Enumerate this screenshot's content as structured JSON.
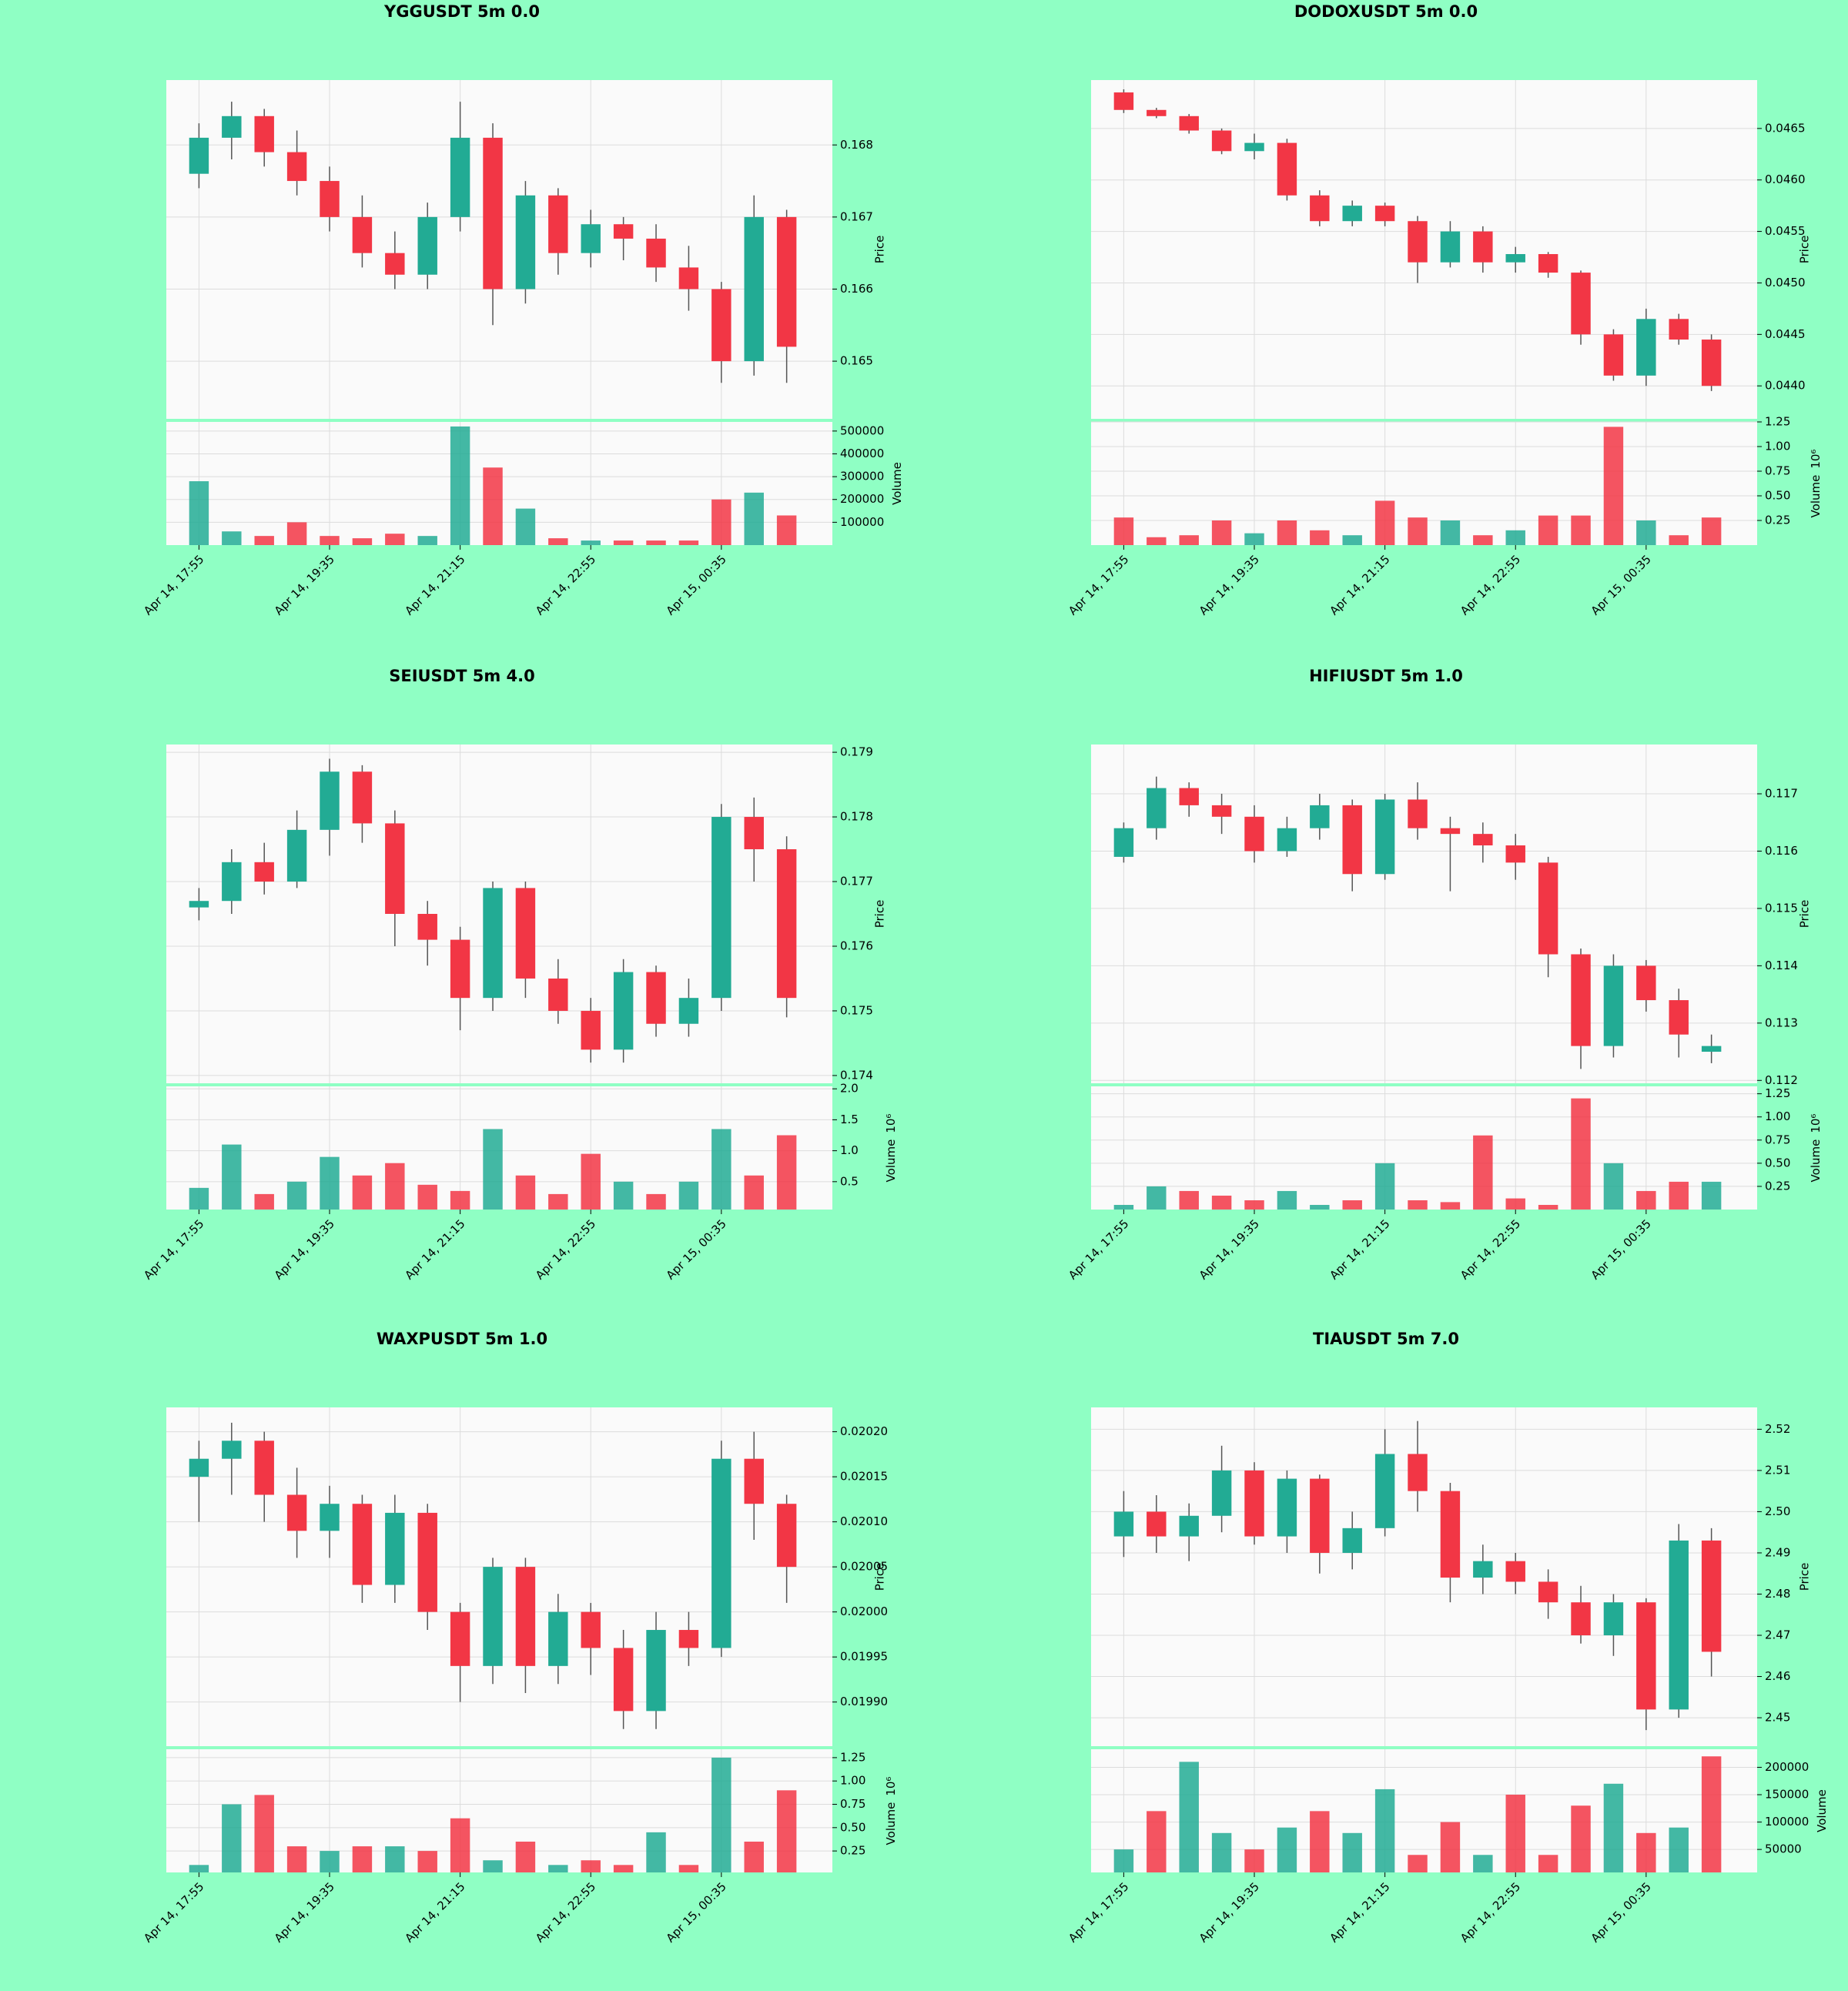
{
  "chart_data": [
    {
      "type": "candlestick",
      "title": "YGGUSDT 5m 0.0",
      "up_color": "#22ab94",
      "down_color": "#f23645",
      "x": [
        0,
        5,
        10,
        15,
        20,
        25,
        30,
        35,
        40,
        45,
        50,
        55,
        60,
        65,
        70,
        75,
        80,
        85,
        90
      ],
      "open": [
        0.1676,
        0.1681,
        0.1684,
        0.1679,
        0.1675,
        0.167,
        0.1665,
        0.1662,
        0.167,
        0.1681,
        0.166,
        0.1673,
        0.1665,
        0.1669,
        0.1667,
        0.1663,
        0.166,
        0.165,
        0.167
      ],
      "high": [
        0.1683,
        0.1686,
        0.1685,
        0.1682,
        0.1677,
        0.1673,
        0.1668,
        0.1672,
        0.1686,
        0.1683,
        0.1675,
        0.1674,
        0.1671,
        0.167,
        0.1669,
        0.1666,
        0.1661,
        0.1673,
        0.1671
      ],
      "low": [
        0.1674,
        0.1678,
        0.1677,
        0.1673,
        0.1668,
        0.1663,
        0.166,
        0.166,
        0.1668,
        0.1655,
        0.1658,
        0.1662,
        0.1663,
        0.1664,
        0.1661,
        0.1657,
        0.1647,
        0.1648,
        0.1647
      ],
      "close": [
        0.1681,
        0.1684,
        0.1679,
        0.1675,
        0.167,
        0.1665,
        0.1662,
        0.167,
        0.1681,
        0.166,
        0.1673,
        0.1665,
        0.1669,
        0.1667,
        0.1663,
        0.166,
        0.165,
        0.167,
        0.1652
      ],
      "volume": [
        280000,
        60000,
        40000,
        100000,
        40000,
        30000,
        50000,
        40000,
        520000,
        340000,
        160000,
        30000,
        20000,
        20000,
        20000,
        20000,
        200000,
        230000,
        130000
      ],
      "xlim": [
        -5,
        97
      ],
      "xticks": [
        {
          "value": 0,
          "label": "Apr 14, 17:55"
        },
        {
          "value": 20,
          "label": "Apr 14, 19:35"
        },
        {
          "value": 40,
          "label": "Apr 14, 21:15"
        },
        {
          "value": 60,
          "label": "Apr 14, 22:55"
        },
        {
          "value": 80,
          "label": "Apr 15, 00:35"
        }
      ],
      "ylim": [
        0.1642,
        0.1689
      ],
      "yticks": [
        0.165,
        0.166,
        0.167,
        0.168
      ],
      "ylabel": "Price",
      "volume_ylim": [
        0,
        540000
      ],
      "volume_yticks": [
        100000,
        200000,
        300000,
        400000,
        500000
      ],
      "volume_label": "Volume"
    },
    {
      "type": "candlestick",
      "title": "DODOXUSDT 5m 0.0",
      "up_color": "#22ab94",
      "down_color": "#f23645",
      "x": [
        0,
        5,
        10,
        15,
        20,
        25,
        30,
        35,
        40,
        45,
        50,
        55,
        60,
        65,
        70,
        75,
        80,
        85,
        90
      ],
      "open": [
        0.04685,
        0.04668,
        0.04662,
        0.04648,
        0.04628,
        0.04636,
        0.04585,
        0.0456,
        0.04575,
        0.0456,
        0.0452,
        0.0455,
        0.0452,
        0.04528,
        0.0451,
        0.0445,
        0.0441,
        0.04465,
        0.04445
      ],
      "high": [
        0.04688,
        0.0467,
        0.04664,
        0.0465,
        0.04645,
        0.0464,
        0.0459,
        0.0458,
        0.04578,
        0.04565,
        0.0456,
        0.04555,
        0.04535,
        0.0453,
        0.04512,
        0.04455,
        0.04475,
        0.0447,
        0.0445
      ],
      "low": [
        0.04665,
        0.0466,
        0.04645,
        0.04625,
        0.0462,
        0.0458,
        0.04555,
        0.04555,
        0.04555,
        0.045,
        0.04515,
        0.0451,
        0.0451,
        0.04505,
        0.0444,
        0.04405,
        0.044,
        0.0444,
        0.04395
      ],
      "close": [
        0.04668,
        0.04662,
        0.04648,
        0.04628,
        0.04636,
        0.04585,
        0.0456,
        0.04575,
        0.0456,
        0.0452,
        0.0455,
        0.0452,
        0.04528,
        0.0451,
        0.0445,
        0.0441,
        0.04465,
        0.04445,
        0.044
      ],
      "volume": [
        0.28,
        0.08,
        0.1,
        0.25,
        0.12,
        0.25,
        0.15,
        0.1,
        0.45,
        0.28,
        0.25,
        0.1,
        0.15,
        0.3,
        0.3,
        1.2,
        0.25,
        0.1,
        0.28
      ],
      "xlim": [
        -5,
        97
      ],
      "xticks": [
        {
          "value": 0,
          "label": "Apr 14, 17:55"
        },
        {
          "value": 20,
          "label": "Apr 14, 19:35"
        },
        {
          "value": 40,
          "label": "Apr 14, 21:15"
        },
        {
          "value": 60,
          "label": "Apr 14, 22:55"
        },
        {
          "value": 80,
          "label": "Apr 15, 00:35"
        }
      ],
      "ylim": [
        0.04368,
        0.04697
      ],
      "yticks": [
        {
          "value": 0.044,
          "label": "0.0440"
        },
        0.0445,
        {
          "value": 0.045,
          "label": "0.0450"
        },
        0.0455,
        {
          "value": 0.046,
          "label": "0.0460"
        },
        0.0465
      ],
      "ylabel": "Price",
      "volume_ylim": [
        0,
        1.25
      ],
      "volume_yticks": [
        0.25,
        {
          "value": 0.5,
          "label": "0.50"
        },
        0.75,
        {
          "value": 1,
          "label": "1.00"
        },
        1.25
      ],
      "volume_label": "Volume",
      "volume_scale": "10⁶"
    },
    {
      "type": "candlestick",
      "title": "SEIUSDT 5m 4.0",
      "up_color": "#22ab94",
      "down_color": "#f23645",
      "x": [
        0,
        5,
        10,
        15,
        20,
        25,
        30,
        35,
        40,
        45,
        50,
        55,
        60,
        65,
        70,
        75,
        80,
        85,
        90
      ],
      "open": [
        0.1766,
        0.1767,
        0.1773,
        0.177,
        0.1778,
        0.1787,
        0.1779,
        0.1765,
        0.1761,
        0.1752,
        0.1769,
        0.1755,
        0.175,
        0.1744,
        0.1756,
        0.1748,
        0.1752,
        0.178,
        0.1775
      ],
      "high": [
        0.1769,
        0.1775,
        0.1776,
        0.1781,
        0.1789,
        0.1788,
        0.1781,
        0.1767,
        0.1763,
        0.177,
        0.177,
        0.1758,
        0.1752,
        0.1758,
        0.1757,
        0.1755,
        0.1782,
        0.1783,
        0.1777
      ],
      "low": [
        0.1764,
        0.1765,
        0.1768,
        0.1769,
        0.1774,
        0.1776,
        0.176,
        0.1757,
        0.1747,
        0.175,
        0.1752,
        0.1748,
        0.1742,
        0.1742,
        0.1746,
        0.1746,
        0.175,
        0.177,
        0.1749
      ],
      "close": [
        0.1767,
        0.1773,
        0.177,
        0.1778,
        0.1787,
        0.1779,
        0.1765,
        0.1761,
        0.1752,
        0.1769,
        0.1755,
        0.175,
        0.1744,
        0.1756,
        0.1748,
        0.1752,
        0.178,
        0.1775,
        0.1752
      ],
      "volume": [
        0.4,
        1.1,
        0.3,
        0.5,
        0.9,
        0.6,
        0.8,
        0.45,
        0.35,
        1.35,
        0.6,
        0.3,
        0.95,
        0.5,
        0.3,
        0.5,
        1.35,
        0.6,
        1.25
      ],
      "xlim": [
        -5,
        97
      ],
      "xticks": [
        {
          "value": 0,
          "label": "Apr 14, 17:55"
        },
        {
          "value": 20,
          "label": "Apr 14, 19:35"
        },
        {
          "value": 40,
          "label": "Apr 14, 21:15"
        },
        {
          "value": 60,
          "label": "Apr 14, 22:55"
        },
        {
          "value": 80,
          "label": "Apr 15, 00:35"
        }
      ],
      "ylim": [
        0.17388,
        0.17912
      ],
      "yticks": [
        0.174,
        0.175,
        0.176,
        0.177,
        0.178,
        0.179
      ],
      "ylabel": "Price",
      "volume_ylim": [
        0.05,
        2.04
      ],
      "volume_yticks": [
        0.5,
        {
          "value": 1,
          "label": "1.0"
        },
        1.5,
        {
          "value": 2,
          "label": "2.0"
        }
      ],
      "volume_label": "Volume",
      "volume_scale": "10⁶"
    },
    {
      "type": "candlestick",
      "title": "HIFIUSDT 5m 1.0",
      "up_color": "#22ab94",
      "down_color": "#f23645",
      "x": [
        0,
        5,
        10,
        15,
        20,
        25,
        30,
        35,
        40,
        45,
        50,
        55,
        60,
        65,
        70,
        75,
        80,
        85,
        90
      ],
      "open": [
        0.1159,
        0.1164,
        0.1171,
        0.1168,
        0.1166,
        0.116,
        0.1164,
        0.1168,
        0.1156,
        0.1169,
        0.1164,
        0.1163,
        0.1161,
        0.1158,
        0.1142,
        0.1126,
        0.114,
        0.1134,
        0.1125
      ],
      "high": [
        0.1165,
        0.1173,
        0.1172,
        0.117,
        0.1168,
        0.1166,
        0.117,
        0.1169,
        0.117,
        0.1172,
        0.1166,
        0.1165,
        0.1163,
        0.1159,
        0.1143,
        0.1142,
        0.1141,
        0.1136,
        0.1128
      ],
      "low": [
        0.1158,
        0.1162,
        0.1166,
        0.1163,
        0.1158,
        0.1159,
        0.1162,
        0.1153,
        0.1155,
        0.1162,
        0.1153,
        0.1158,
        0.1155,
        0.1138,
        0.1122,
        0.1124,
        0.1132,
        0.1124,
        0.1123
      ],
      "close": [
        0.1164,
        0.1171,
        0.1168,
        0.1166,
        0.116,
        0.1164,
        0.1168,
        0.1156,
        0.1169,
        0.1164,
        0.1163,
        0.1161,
        0.1158,
        0.1142,
        0.1126,
        0.114,
        0.1134,
        0.1128,
        0.1126
      ],
      "volume": [
        0.05,
        0.25,
        0.2,
        0.15,
        0.1,
        0.2,
        0.05,
        0.1,
        0.5,
        0.1,
        0.08,
        0.8,
        0.12,
        0.05,
        1.2,
        0.5,
        0.2,
        0.3,
        0.3
      ],
      "xlim": [
        -5,
        97
      ],
      "xticks": [
        {
          "value": 0,
          "label": "Apr 14, 17:55"
        },
        {
          "value": 20,
          "label": "Apr 14, 19:35"
        },
        {
          "value": 40,
          "label": "Apr 14, 21:15"
        },
        {
          "value": 60,
          "label": "Apr 14, 22:55"
        },
        {
          "value": 80,
          "label": "Apr 15, 00:35"
        }
      ],
      "ylim": [
        0.11195,
        0.11786
      ],
      "yticks": [
        0.112,
        0.113,
        0.114,
        0.115,
        0.116,
        0.117
      ],
      "ylabel": "Price",
      "volume_ylim": [
        0,
        1.33
      ],
      "volume_yticks": [
        0.25,
        {
          "value": 0.5,
          "label": "0.50"
        },
        0.75,
        {
          "value": 1,
          "label": "1.00"
        },
        1.25
      ],
      "volume_label": "Volume",
      "volume_scale": "10⁶"
    },
    {
      "type": "candlestick",
      "title": "WAXPUSDT 5m 1.0",
      "up_color": "#22ab94",
      "down_color": "#f23645",
      "x": [
        0,
        5,
        10,
        15,
        20,
        25,
        30,
        35,
        40,
        45,
        50,
        55,
        60,
        65,
        70,
        75,
        80,
        85,
        90
      ],
      "open": [
        0.02015,
        0.02017,
        0.02019,
        0.02013,
        0.02009,
        0.02012,
        0.02003,
        0.02011,
        0.02,
        0.01994,
        0.02005,
        0.01994,
        0.02,
        0.01996,
        0.01989,
        0.01998,
        0.01996,
        0.02017,
        0.02012
      ],
      "high": [
        0.02019,
        0.02021,
        0.0202,
        0.02016,
        0.02014,
        0.02013,
        0.02013,
        0.02012,
        0.02001,
        0.02006,
        0.02006,
        0.02002,
        0.02001,
        0.01998,
        0.02,
        0.02,
        0.02019,
        0.0202,
        0.02013
      ],
      "low": [
        0.0201,
        0.02013,
        0.0201,
        0.02006,
        0.02006,
        0.02001,
        0.02001,
        0.01998,
        0.0199,
        0.01992,
        0.01991,
        0.01992,
        0.01993,
        0.01987,
        0.01987,
        0.01994,
        0.01995,
        0.02008,
        0.02001
      ],
      "close": [
        0.02017,
        0.02019,
        0.02013,
        0.02009,
        0.02012,
        0.02003,
        0.02011,
        0.02,
        0.01994,
        0.02005,
        0.01994,
        0.02,
        0.01996,
        0.01989,
        0.01998,
        0.01996,
        0.02017,
        0.02012,
        0.02005
      ],
      "volume": [
        0.1,
        0.75,
        0.85,
        0.3,
        0.25,
        0.3,
        0.3,
        0.25,
        0.6,
        0.15,
        0.35,
        0.1,
        0.15,
        0.1,
        0.45,
        0.1,
        1.25,
        0.35,
        0.9
      ],
      "xlim": [
        -5,
        97
      ],
      "xticks": [
        {
          "value": 0,
          "label": "Apr 14, 17:55"
        },
        {
          "value": 20,
          "label": "Apr 14, 19:35"
        },
        {
          "value": 40,
          "label": "Apr 14, 21:15"
        },
        {
          "value": 60,
          "label": "Apr 14, 22:55"
        },
        {
          "value": 80,
          "label": "Apr 15, 00:35"
        }
      ],
      "ylim": [
        0.019851,
        0.020227
      ],
      "yticks": [
        {
          "value": 0.0199,
          "label": "0.01990"
        },
        0.01995,
        {
          "value": 0.02,
          "label": "0.02000"
        },
        0.02005,
        {
          "value": 0.0201,
          "label": "0.02010"
        },
        0.02015,
        {
          "value": 0.0202,
          "label": "0.02020"
        }
      ],
      "ylabel": "Price",
      "volume_ylim": [
        0.02,
        1.34
      ],
      "volume_yticks": [
        0.25,
        {
          "value": 0.5,
          "label": "0.50"
        },
        0.75,
        {
          "value": 1,
          "label": "1.00"
        },
        1.25
      ],
      "volume_label": "Volume",
      "volume_scale": "10⁶"
    },
    {
      "type": "candlestick",
      "title": "TIAUSDT 5m 7.0",
      "up_color": "#22ab94",
      "down_color": "#f23645",
      "x": [
        0,
        5,
        10,
        15,
        20,
        25,
        30,
        35,
        40,
        45,
        50,
        55,
        60,
        65,
        70,
        75,
        80,
        85,
        90
      ],
      "open": [
        2.494,
        2.5,
        2.494,
        2.499,
        2.51,
        2.494,
        2.508,
        2.49,
        2.496,
        2.514,
        2.505,
        2.484,
        2.488,
        2.483,
        2.478,
        2.47,
        2.478,
        2.452,
        2.493
      ],
      "high": [
        2.505,
        2.504,
        2.502,
        2.516,
        2.512,
        2.51,
        2.509,
        2.5,
        2.52,
        2.522,
        2.507,
        2.492,
        2.49,
        2.486,
        2.482,
        2.48,
        2.479,
        2.497,
        2.496
      ],
      "low": [
        2.489,
        2.49,
        2.488,
        2.495,
        2.492,
        2.49,
        2.485,
        2.486,
        2.494,
        2.5,
        2.478,
        2.48,
        2.48,
        2.474,
        2.468,
        2.465,
        2.447,
        2.45,
        2.46
      ],
      "close": [
        2.5,
        2.494,
        2.499,
        2.51,
        2.494,
        2.508,
        2.49,
        2.496,
        2.514,
        2.505,
        2.484,
        2.488,
        2.483,
        2.478,
        2.47,
        2.478,
        2.452,
        2.493,
        2.466
      ],
      "volume": [
        50000,
        120000,
        210000,
        80000,
        50000,
        90000,
        120000,
        80000,
        160000,
        40000,
        100000,
        40000,
        150000,
        40000,
        130000,
        170000,
        80000,
        90000,
        220000
      ],
      "xlim": [
        -5,
        97
      ],
      "xticks": [
        {
          "value": 0,
          "label": "Apr 14, 17:55"
        },
        {
          "value": 20,
          "label": "Apr 14, 19:35"
        },
        {
          "value": 40,
          "label": "Apr 14, 21:15"
        },
        {
          "value": 60,
          "label": "Apr 14, 22:55"
        },
        {
          "value": 80,
          "label": "Apr 15, 00:35"
        }
      ],
      "ylim": [
        2.4431,
        2.5253
      ],
      "yticks": [
        2.45,
        2.46,
        2.47,
        2.48,
        2.49,
        {
          "value": 2.5,
          "label": "2.50"
        },
        2.51,
        2.52
      ],
      "ylabel": "Price",
      "volume_ylim": [
        8000,
        233000
      ],
      "volume_yticks": [
        50000,
        100000,
        150000,
        200000
      ],
      "volume_label": "Volume"
    }
  ]
}
